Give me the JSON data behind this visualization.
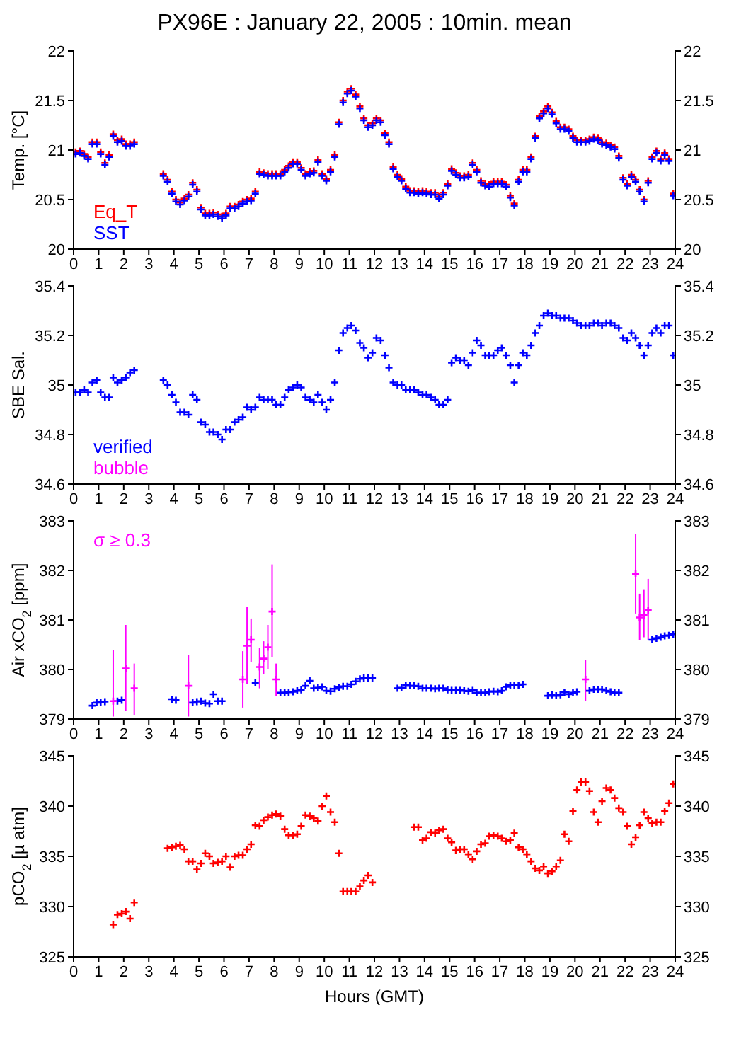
{
  "chart_data": [
    {
      "type": "scatter",
      "title": "PX96E : January 22, 2005 : 10min. mean",
      "ylabel": "Temp. [°C]",
      "marker": "cross",
      "legend": "bottom left",
      "xlim": [
        0,
        24
      ],
      "xticks": [
        0,
        1,
        2,
        3,
        4,
        5,
        6,
        7,
        8,
        9,
        10,
        11,
        12,
        13,
        14,
        15,
        16,
        17,
        18,
        19,
        20,
        21,
        22,
        23,
        24
      ],
      "ylim": [
        20,
        22
      ],
      "yticks": [
        20,
        20.5,
        21,
        21.5,
        22
      ],
      "y2lim": [
        20,
        22
      ],
      "y2ticks": [
        20,
        20.5,
        21,
        21.5,
        22
      ],
      "series": [
        {
          "name": "Eq_T",
          "color": "#ff0000",
          "x": [
            0.08,
            0.25,
            0.42,
            0.58,
            0.75,
            0.92,
            1.08,
            1.25,
            1.42,
            1.58,
            1.75,
            1.92,
            2.08,
            2.25,
            2.42,
            3.58,
            3.75,
            3.92,
            4.08,
            4.25,
            4.42,
            4.58,
            4.75,
            4.92,
            5.08,
            5.25,
            5.42,
            5.58,
            5.75,
            5.92,
            6.08,
            6.25,
            6.42,
            6.58,
            6.75,
            6.92,
            7.08,
            7.25,
            7.42,
            7.58,
            7.75,
            7.92,
            8.08,
            8.25,
            8.42,
            8.58,
            8.75,
            8.92,
            9.08,
            9.25,
            9.42,
            9.58,
            9.75,
            9.92,
            10.08,
            10.25,
            10.42,
            10.58,
            10.75,
            10.92,
            11.08,
            11.25,
            11.42,
            11.58,
            11.75,
            11.92,
            12.08,
            12.25,
            12.42,
            12.58,
            12.75,
            12.92,
            13.08,
            13.25,
            13.42,
            13.58,
            13.75,
            13.92,
            14.08,
            14.25,
            14.42,
            14.58,
            14.75,
            14.92,
            15.08,
            15.25,
            15.42,
            15.58,
            15.75,
            15.92,
            16.08,
            16.25,
            16.42,
            16.58,
            16.75,
            16.92,
            17.08,
            17.25,
            17.42,
            17.58,
            17.75,
            17.92,
            18.08,
            18.25,
            18.42,
            18.58,
            18.75,
            18.92,
            19.08,
            19.25,
            19.42,
            19.58,
            19.75,
            19.92,
            20.08,
            20.25,
            20.42,
            20.58,
            20.75,
            20.92,
            21.08,
            21.25,
            21.42,
            21.58,
            21.75,
            21.92,
            22.08,
            22.25,
            22.42,
            22.58,
            22.75,
            22.92,
            23.08,
            23.25,
            23.42,
            23.58,
            23.75,
            23.92
          ],
          "values": [
            20.98,
            20.99,
            20.96,
            20.93,
            21.08,
            21.08,
            20.98,
            20.87,
            20.95,
            21.16,
            21.1,
            21.11,
            21.06,
            21.06,
            21.08,
            20.76,
            20.7,
            20.58,
            20.5,
            20.47,
            20.51,
            20.55,
            20.67,
            20.6,
            20.42,
            20.36,
            20.36,
            20.37,
            20.35,
            20.33,
            20.36,
            20.43,
            20.43,
            20.45,
            20.48,
            20.5,
            20.51,
            20.58,
            20.78,
            20.77,
            20.76,
            20.76,
            20.76,
            20.76,
            20.8,
            20.84,
            20.88,
            20.88,
            20.82,
            20.76,
            20.78,
            20.79,
            20.9,
            20.76,
            20.71,
            20.8,
            20.95,
            21.28,
            21.5,
            21.59,
            21.62,
            21.56,
            21.44,
            21.32,
            21.25,
            21.27,
            21.32,
            21.3,
            21.17,
            21.08,
            20.83,
            20.75,
            20.71,
            20.63,
            20.59,
            20.59,
            20.58,
            20.59,
            20.58,
            20.57,
            20.57,
            20.53,
            20.57,
            20.66,
            20.81,
            20.77,
            20.74,
            20.74,
            20.75,
            20.87,
            20.8,
            20.69,
            20.66,
            20.65,
            20.68,
            20.68,
            20.68,
            20.65,
            20.54,
            20.46,
            20.7,
            20.8,
            20.8,
            20.93,
            21.14,
            21.34,
            21.39,
            21.44,
            21.38,
            21.29,
            21.23,
            21.23,
            21.21,
            21.14,
            21.1,
            21.1,
            21.1,
            21.11,
            21.13,
            21.12,
            21.08,
            21.07,
            21.05,
            21.03,
            20.94,
            20.72,
            20.66,
            20.75,
            20.7,
            20.6,
            20.5,
            20.69,
            20.93,
            20.99,
            20.91,
            20.97,
            20.91,
            20.56
          ]
        },
        {
          "name": "SST",
          "color": "#0000ff",
          "x": [
            0.08,
            0.25,
            0.42,
            0.58,
            0.75,
            0.92,
            1.08,
            1.25,
            1.42,
            1.58,
            1.75,
            1.92,
            2.08,
            2.25,
            2.42,
            3.58,
            3.75,
            3.92,
            4.08,
            4.25,
            4.42,
            4.58,
            4.75,
            4.92,
            5.08,
            5.25,
            5.42,
            5.58,
            5.75,
            5.92,
            6.08,
            6.25,
            6.42,
            6.58,
            6.75,
            6.92,
            7.08,
            7.25,
            7.42,
            7.58,
            7.75,
            7.92,
            8.08,
            8.25,
            8.42,
            8.58,
            8.75,
            8.92,
            9.08,
            9.25,
            9.42,
            9.58,
            9.75,
            9.92,
            10.08,
            10.25,
            10.42,
            10.58,
            10.75,
            10.92,
            11.08,
            11.25,
            11.42,
            11.58,
            11.75,
            11.92,
            12.08,
            12.25,
            12.42,
            12.58,
            12.75,
            12.92,
            13.08,
            13.25,
            13.42,
            13.58,
            13.75,
            13.92,
            14.08,
            14.25,
            14.42,
            14.58,
            14.75,
            14.92,
            15.08,
            15.25,
            15.42,
            15.58,
            15.75,
            15.92,
            16.08,
            16.25,
            16.42,
            16.58,
            16.75,
            16.92,
            17.08,
            17.25,
            17.42,
            17.58,
            17.75,
            17.92,
            18.08,
            18.25,
            18.42,
            18.58,
            18.75,
            18.92,
            19.08,
            19.25,
            19.42,
            19.58,
            19.75,
            19.92,
            20.08,
            20.25,
            20.42,
            20.58,
            20.75,
            20.92,
            21.08,
            21.25,
            21.42,
            21.58,
            21.75,
            21.92,
            22.08,
            22.25,
            22.42,
            22.58,
            22.75,
            22.92,
            23.08,
            23.25,
            23.42,
            23.58,
            23.75,
            23.92
          ],
          "values": [
            20.96,
            20.97,
            20.94,
            20.91,
            21.06,
            21.06,
            20.96,
            20.85,
            20.93,
            21.14,
            21.08,
            21.09,
            21.04,
            21.04,
            21.06,
            20.74,
            20.68,
            20.56,
            20.48,
            20.45,
            20.49,
            20.53,
            20.65,
            20.58,
            20.4,
            20.34,
            20.34,
            20.35,
            20.33,
            20.31,
            20.34,
            20.41,
            20.41,
            20.43,
            20.46,
            20.48,
            20.49,
            20.56,
            20.76,
            20.75,
            20.74,
            20.74,
            20.74,
            20.74,
            20.78,
            20.82,
            20.86,
            20.86,
            20.8,
            20.74,
            20.76,
            20.77,
            20.88,
            20.74,
            20.69,
            20.78,
            20.93,
            21.26,
            21.48,
            21.57,
            21.6,
            21.54,
            21.42,
            21.3,
            21.23,
            21.25,
            21.3,
            21.28,
            21.15,
            21.06,
            20.81,
            20.73,
            20.69,
            20.61,
            20.57,
            20.57,
            20.56,
            20.57,
            20.56,
            20.55,
            20.55,
            20.51,
            20.55,
            20.64,
            20.79,
            20.75,
            20.72,
            20.72,
            20.73,
            20.85,
            20.78,
            20.67,
            20.64,
            20.63,
            20.66,
            20.66,
            20.66,
            20.63,
            20.52,
            20.44,
            20.68,
            20.78,
            20.78,
            20.91,
            21.12,
            21.32,
            21.37,
            21.42,
            21.36,
            21.27,
            21.21,
            21.21,
            21.19,
            21.12,
            21.08,
            21.08,
            21.08,
            21.09,
            21.11,
            21.1,
            21.06,
            21.05,
            21.03,
            21.01,
            20.92,
            20.7,
            20.64,
            20.73,
            20.68,
            20.58,
            20.48,
            20.67,
            20.91,
            20.97,
            20.89,
            20.95,
            20.89,
            20.54
          ]
        }
      ]
    },
    {
      "type": "scatter",
      "ylabel": "SBE Sal.",
      "marker": "cross",
      "legend": "bottom left",
      "xlim": [
        0,
        24
      ],
      "xticks": [
        0,
        1,
        2,
        3,
        4,
        5,
        6,
        7,
        8,
        9,
        10,
        11,
        12,
        13,
        14,
        15,
        16,
        17,
        18,
        19,
        20,
        21,
        22,
        23,
        24
      ],
      "ylim": [
        34.6,
        35.4
      ],
      "yticks": [
        34.6,
        34.8,
        35,
        35.2,
        35.4
      ],
      "y2lim": [
        34.6,
        35.4
      ],
      "y2ticks": [
        34.6,
        34.8,
        35,
        35.2,
        35.4
      ],
      "series": [
        {
          "name": "verified",
          "color": "#0000ff",
          "x": [
            0.08,
            0.25,
            0.42,
            0.58,
            0.75,
            0.92,
            1.08,
            1.25,
            1.42,
            1.58,
            1.75,
            1.92,
            2.08,
            2.25,
            2.42,
            3.58,
            3.75,
            3.92,
            4.08,
            4.25,
            4.42,
            4.58,
            4.75,
            4.92,
            5.08,
            5.25,
            5.42,
            5.58,
            5.75,
            5.92,
            6.08,
            6.25,
            6.42,
            6.58,
            6.75,
            6.92,
            7.08,
            7.25,
            7.42,
            7.58,
            7.75,
            7.92,
            8.08,
            8.25,
            8.42,
            8.58,
            8.75,
            8.92,
            9.08,
            9.25,
            9.42,
            9.58,
            9.75,
            9.92,
            10.08,
            10.25,
            10.42,
            10.58,
            10.75,
            10.92,
            11.08,
            11.25,
            11.42,
            11.58,
            11.75,
            11.92,
            12.08,
            12.25,
            12.42,
            12.58,
            12.75,
            12.92,
            13.08,
            13.25,
            13.42,
            13.58,
            13.75,
            13.92,
            14.08,
            14.25,
            14.42,
            14.58,
            14.75,
            14.92,
            15.08,
            15.25,
            15.42,
            15.58,
            15.75,
            15.92,
            16.08,
            16.25,
            16.42,
            16.58,
            16.75,
            16.92,
            17.08,
            17.25,
            17.42,
            17.58,
            17.75,
            17.92,
            18.08,
            18.25,
            18.42,
            18.58,
            18.75,
            18.92,
            19.08,
            19.25,
            19.42,
            19.58,
            19.75,
            19.92,
            20.08,
            20.25,
            20.42,
            20.58,
            20.75,
            20.92,
            21.08,
            21.25,
            21.42,
            21.58,
            21.75,
            21.92,
            22.08,
            22.25,
            22.42,
            22.58,
            22.75,
            22.92,
            23.08,
            23.25,
            23.42,
            23.58,
            23.75,
            23.92
          ],
          "values": [
            34.97,
            34.97,
            34.98,
            34.97,
            35.01,
            35.02,
            34.97,
            34.95,
            34.95,
            35.03,
            35.01,
            35.02,
            35.03,
            35.05,
            35.06,
            35.02,
            35.0,
            34.96,
            34.93,
            34.89,
            34.89,
            34.88,
            34.96,
            34.94,
            34.85,
            34.84,
            34.81,
            34.81,
            34.8,
            34.78,
            34.82,
            34.82,
            34.85,
            34.86,
            34.87,
            34.91,
            34.9,
            34.91,
            34.95,
            34.94,
            34.94,
            34.94,
            34.92,
            34.92,
            34.95,
            34.98,
            34.99,
            35.0,
            34.99,
            34.95,
            34.94,
            34.93,
            34.96,
            34.93,
            34.9,
            34.94,
            35.01,
            35.14,
            35.21,
            35.23,
            35.24,
            35.22,
            35.17,
            35.15,
            35.11,
            35.13,
            35.19,
            35.18,
            35.12,
            35.07,
            35.01,
            35.0,
            35.0,
            34.98,
            34.98,
            34.98,
            34.97,
            34.96,
            34.96,
            34.95,
            34.94,
            34.92,
            34.92,
            34.94,
            35.09,
            35.11,
            35.1,
            35.1,
            35.08,
            35.13,
            35.18,
            35.16,
            35.12,
            35.12,
            35.12,
            35.14,
            35.15,
            35.12,
            35.08,
            35.01,
            35.08,
            35.13,
            35.12,
            35.16,
            35.21,
            35.24,
            35.28,
            35.29,
            35.28,
            35.28,
            35.27,
            35.27,
            35.27,
            35.26,
            35.25,
            35.24,
            35.24,
            35.24,
            35.25,
            35.25,
            35.24,
            35.25,
            35.25,
            35.24,
            35.23,
            35.19,
            35.18,
            35.21,
            35.19,
            35.16,
            35.12,
            35.16,
            35.21,
            35.23,
            35.21,
            35.24,
            35.24,
            35.12
          ]
        },
        {
          "name": "bubble",
          "color": "#ff00ff"
        }
      ]
    },
    {
      "type": "scatter",
      "ylabel": "Air xCO$_{2}$ [ppm]",
      "marker": "cross",
      "legend": "top left",
      "xlim": [
        0,
        24
      ],
      "xticks": [
        0,
        1,
        2,
        3,
        4,
        5,
        6,
        7,
        8,
        9,
        10,
        11,
        12,
        13,
        14,
        15,
        16,
        17,
        18,
        19,
        20,
        21,
        22,
        23,
        24
      ],
      "ylim": [
        379,
        383
      ],
      "yticks": [
        379,
        380,
        381,
        382,
        383
      ],
      "y2lim": [
        379,
        383
      ],
      "y2ticks": [
        379,
        380,
        381,
        382,
        383
      ],
      "series": [
        {
          "color": "#0000ff",
          "x": [
            0.75,
            0.92,
            1.08,
            1.25,
            1.75,
            1.92,
            3.92,
            4.08,
            4.75,
            4.92,
            5.08,
            5.25,
            5.42,
            5.58,
            5.75,
            5.92,
            7.25,
            8.25,
            8.42,
            8.58,
            8.75,
            8.92,
            9.08,
            9.25,
            9.42,
            9.58,
            9.75,
            9.92,
            10.08,
            10.25,
            10.42,
            10.58,
            10.75,
            10.92,
            11.08,
            11.25,
            11.42,
            11.58,
            11.75,
            11.92,
            12.92,
            13.08,
            13.25,
            13.42,
            13.58,
            13.75,
            13.92,
            14.08,
            14.25,
            14.42,
            14.58,
            14.75,
            14.92,
            15.08,
            15.25,
            15.42,
            15.58,
            15.75,
            15.92,
            16.08,
            16.25,
            16.42,
            16.58,
            16.75,
            16.92,
            17.08,
            17.25,
            17.42,
            17.58,
            17.75,
            17.92,
            18.92,
            19.08,
            19.25,
            19.42,
            19.58,
            19.75,
            19.92,
            20.08,
            20.58,
            20.75,
            20.92,
            21.08,
            21.25,
            21.42,
            21.58,
            21.75,
            23.08,
            23.25,
            23.42,
            23.58,
            23.75,
            23.92
          ],
          "values": [
            379.27,
            379.33,
            379.34,
            379.35,
            379.36,
            379.38,
            379.4,
            379.38,
            379.33,
            379.35,
            379.36,
            379.32,
            379.31,
            379.5,
            379.36,
            379.36,
            379.73,
            379.53,
            379.53,
            379.54,
            379.55,
            379.57,
            379.59,
            379.67,
            379.77,
            379.62,
            379.63,
            379.65,
            379.57,
            379.56,
            379.61,
            379.64,
            379.66,
            379.66,
            379.7,
            379.76,
            379.81,
            379.83,
            379.83,
            379.83,
            379.62,
            379.63,
            379.68,
            379.67,
            379.67,
            379.66,
            379.62,
            379.62,
            379.62,
            379.61,
            379.62,
            379.62,
            379.59,
            379.58,
            379.58,
            379.58,
            379.57,
            379.56,
            379.58,
            379.53,
            379.53,
            379.53,
            379.55,
            379.56,
            379.55,
            379.57,
            379.65,
            379.68,
            379.68,
            379.68,
            379.7,
            379.47,
            379.49,
            379.47,
            379.49,
            379.54,
            379.5,
            379.53,
            379.55,
            379.57,
            379.6,
            379.6,
            379.6,
            379.57,
            379.55,
            379.53,
            379.53,
            380.6,
            380.63,
            380.65,
            380.68,
            380.69,
            380.71
          ]
        },
        {
          "name": "σ ≥ 0.3",
          "color": "#ff00ff",
          "x": [
            1.58,
            2.08,
            2.42,
            4.58,
            6.75,
            6.92,
            7.08,
            7.42,
            7.58,
            7.75,
            7.92,
            8.08,
            20.42,
            22.42,
            22.58,
            22.75,
            22.92
          ],
          "values": [
            379.36,
            380.02,
            379.62,
            379.67,
            379.8,
            380.48,
            380.6,
            380.05,
            380.22,
            380.45,
            381.17,
            379.8,
            379.8,
            381.93,
            381.05,
            381.1,
            381.2
          ],
          "errors": [
            [
              379.05,
              380.4
            ],
            [
              379.17,
              380.9
            ],
            [
              379.08,
              380.12
            ],
            [
              379.05,
              380.3
            ],
            [
              379.23,
              380.37
            ],
            [
              379.7,
              381.27
            ],
            [
              380.15,
              381.03
            ],
            [
              379.62,
              380.43
            ],
            [
              379.9,
              380.57
            ],
            [
              380.0,
              380.9
            ],
            [
              380.25,
              382.12
            ],
            [
              379.47,
              380.12
            ],
            [
              379.37,
              380.2
            ],
            [
              381.13,
              382.73
            ],
            [
              380.6,
              381.53
            ],
            [
              380.65,
              381.62
            ],
            [
              380.6,
              381.83
            ]
          ]
        }
      ]
    },
    {
      "type": "scatter",
      "ylabel": "pCO$_{2}$ [µ atm]",
      "xlabel": "Hours (GMT)",
      "marker": "cross",
      "xlim": [
        0,
        24
      ],
      "xticks": [
        0,
        1,
        2,
        3,
        4,
        5,
        6,
        7,
        8,
        9,
        10,
        11,
        12,
        13,
        14,
        15,
        16,
        17,
        18,
        19,
        20,
        21,
        22,
        23,
        24
      ],
      "ylim": [
        325,
        345
      ],
      "yticks": [
        325,
        330,
        335,
        340,
        345
      ],
      "y2lim": [
        325,
        345
      ],
      "y2ticks": [
        325,
        330,
        335,
        340,
        345
      ],
      "series": [
        {
          "color": "#ff0000",
          "x": [
            1.58,
            1.75,
            1.92,
            2.08,
            2.25,
            2.42,
            3.75,
            3.92,
            4.08,
            4.25,
            4.42,
            4.58,
            4.75,
            4.92,
            5.08,
            5.25,
            5.42,
            5.58,
            5.75,
            5.92,
            6.08,
            6.25,
            6.42,
            6.58,
            6.75,
            6.92,
            7.08,
            7.25,
            7.42,
            7.58,
            7.75,
            7.92,
            8.08,
            8.25,
            8.42,
            8.58,
            8.75,
            8.92,
            9.08,
            9.25,
            9.42,
            9.58,
            9.75,
            9.92,
            10.08,
            10.25,
            10.42,
            10.58,
            10.75,
            10.92,
            11.08,
            11.25,
            11.42,
            11.58,
            11.75,
            11.92,
            13.58,
            13.75,
            13.92,
            14.08,
            14.25,
            14.42,
            14.58,
            14.75,
            14.92,
            15.08,
            15.25,
            15.42,
            15.58,
            15.75,
            15.92,
            16.08,
            16.25,
            16.42,
            16.58,
            16.75,
            16.92,
            17.08,
            17.25,
            17.42,
            17.58,
            17.75,
            17.92,
            18.08,
            18.25,
            18.42,
            18.58,
            18.75,
            18.92,
            19.08,
            19.25,
            19.42,
            19.58,
            19.75,
            19.92,
            20.08,
            20.25,
            20.42,
            20.58,
            20.75,
            20.92,
            21.08,
            21.25,
            21.42,
            21.58,
            21.75,
            21.92,
            22.08,
            22.25,
            22.42,
            22.58,
            22.75,
            22.92,
            23.08,
            23.25,
            23.42,
            23.58,
            23.75,
            23.92
          ],
          "values": [
            328.2,
            329.2,
            329.3,
            329.5,
            328.8,
            330.4,
            335.8,
            335.9,
            336.0,
            336.1,
            335.7,
            334.5,
            334.5,
            333.7,
            334.3,
            335.3,
            335.0,
            334.3,
            334.4,
            334.5,
            335.0,
            333.9,
            335.0,
            335.1,
            335.1,
            335.7,
            336.2,
            338.1,
            338.0,
            338.6,
            338.9,
            339.1,
            339.2,
            339.0,
            337.7,
            337.1,
            337.1,
            337.2,
            338.0,
            339.1,
            339.0,
            338.8,
            338.5,
            340.0,
            341.0,
            339.4,
            338.4,
            335.3,
            331.5,
            331.5,
            331.5,
            331.5,
            332.0,
            332.6,
            333.1,
            332.4,
            337.9,
            337.9,
            336.6,
            336.8,
            337.4,
            337.3,
            337.6,
            337.7,
            336.8,
            336.4,
            335.6,
            335.7,
            335.7,
            335.2,
            334.7,
            335.5,
            336.2,
            336.3,
            337.0,
            337.1,
            337.0,
            336.8,
            336.5,
            336.6,
            337.3,
            335.9,
            335.7,
            335.2,
            334.5,
            333.8,
            333.6,
            334.0,
            333.3,
            333.5,
            334.0,
            334.6,
            337.2,
            336.5,
            339.5,
            341.6,
            342.4,
            342.4,
            341.5,
            339.4,
            338.4,
            340.5,
            341.8,
            341.6,
            340.8,
            339.8,
            339.4,
            338.0,
            336.2,
            336.9,
            338.1,
            339.4,
            338.8,
            338.3,
            338.4,
            338.4,
            339.5,
            340.3,
            342.2
          ]
        }
      ]
    }
  ]
}
